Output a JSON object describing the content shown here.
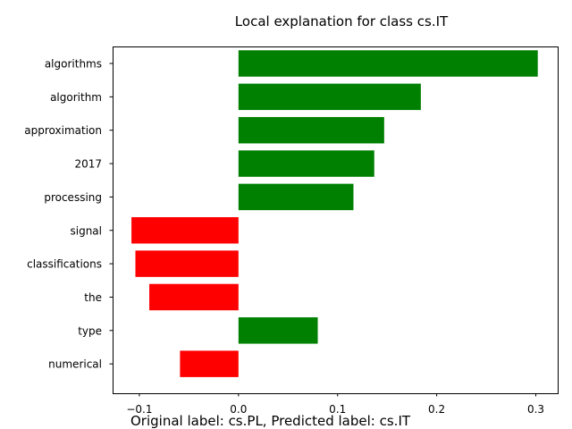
{
  "chart_data": {
    "type": "bar",
    "orientation": "horizontal",
    "title": "Local explanation for class cs.IT",
    "caption": "Original label: cs.PL, Predicted label: cs.IT",
    "categories": [
      "algorithms",
      "algorithm",
      "approximation",
      "2017",
      "processing",
      "signal",
      "classifications",
      "the",
      "type",
      "numerical"
    ],
    "values": [
      0.302,
      0.184,
      0.147,
      0.137,
      0.116,
      -0.108,
      -0.104,
      -0.09,
      0.08,
      -0.059
    ],
    "xlabel": "",
    "ylabel": "",
    "xlim": [
      -0.127,
      0.323
    ],
    "xticks": [
      -0.1,
      0.0,
      0.1,
      0.2,
      0.3
    ],
    "xtick_labels": [
      "−0.1",
      "0.0",
      "0.1",
      "0.2",
      "0.3"
    ],
    "grid": false,
    "colors": {
      "positive": "#008000",
      "negative": "#ff0000"
    }
  }
}
